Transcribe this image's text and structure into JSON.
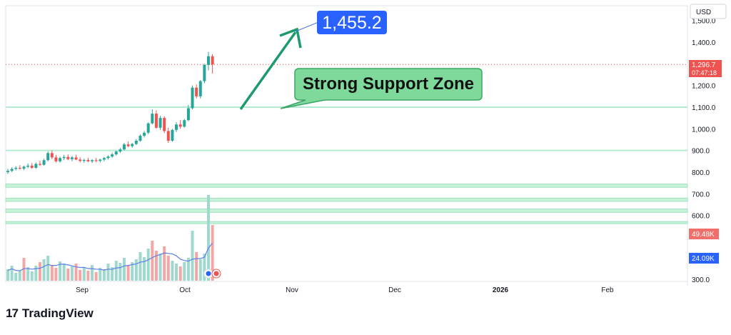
{
  "currency": "USD",
  "chart_data": {
    "type": "candlestick",
    "x_labels": [
      "Sep",
      "Oct",
      "Nov",
      "Dec",
      "2026",
      "Feb"
    ],
    "y_ticks": [
      "1,500.0",
      "1,400.0",
      "1,200.0",
      "1,100.0",
      "1,000.0",
      "900.0",
      "800.0",
      "700.0",
      "600.0",
      "300.0"
    ],
    "ylim": [
      300,
      1520
    ],
    "candles": [
      {
        "o": 800,
        "h": 815,
        "l": 792,
        "c": 806
      },
      {
        "o": 806,
        "h": 822,
        "l": 800,
        "c": 815
      },
      {
        "o": 815,
        "h": 828,
        "l": 808,
        "c": 820
      },
      {
        "o": 820,
        "h": 832,
        "l": 812,
        "c": 816
      },
      {
        "o": 816,
        "h": 830,
        "l": 810,
        "c": 825
      },
      {
        "o": 825,
        "h": 840,
        "l": 818,
        "c": 830
      },
      {
        "o": 830,
        "h": 842,
        "l": 815,
        "c": 820
      },
      {
        "o": 820,
        "h": 845,
        "l": 815,
        "c": 838
      },
      {
        "o": 838,
        "h": 852,
        "l": 828,
        "c": 834
      },
      {
        "o": 834,
        "h": 862,
        "l": 830,
        "c": 855
      },
      {
        "o": 855,
        "h": 895,
        "l": 850,
        "c": 888
      },
      {
        "o": 888,
        "h": 900,
        "l": 860,
        "c": 868
      },
      {
        "o": 868,
        "h": 880,
        "l": 845,
        "c": 850
      },
      {
        "o": 850,
        "h": 872,
        "l": 844,
        "c": 865
      },
      {
        "o": 865,
        "h": 880,
        "l": 855,
        "c": 870
      },
      {
        "o": 870,
        "h": 882,
        "l": 855,
        "c": 860
      },
      {
        "o": 860,
        "h": 875,
        "l": 850,
        "c": 868
      },
      {
        "o": 868,
        "h": 880,
        "l": 855,
        "c": 858
      },
      {
        "o": 858,
        "h": 868,
        "l": 845,
        "c": 852
      },
      {
        "o": 852,
        "h": 862,
        "l": 843,
        "c": 856
      },
      {
        "o": 856,
        "h": 866,
        "l": 846,
        "c": 850
      },
      {
        "o": 850,
        "h": 860,
        "l": 842,
        "c": 855
      },
      {
        "o": 855,
        "h": 865,
        "l": 846,
        "c": 852
      },
      {
        "o": 852,
        "h": 862,
        "l": 845,
        "c": 858
      },
      {
        "o": 858,
        "h": 870,
        "l": 850,
        "c": 865
      },
      {
        "o": 865,
        "h": 878,
        "l": 858,
        "c": 872
      },
      {
        "o": 872,
        "h": 890,
        "l": 866,
        "c": 882
      },
      {
        "o": 882,
        "h": 900,
        "l": 876,
        "c": 895
      },
      {
        "o": 895,
        "h": 912,
        "l": 888,
        "c": 905
      },
      {
        "o": 905,
        "h": 935,
        "l": 900,
        "c": 928
      },
      {
        "o": 928,
        "h": 942,
        "l": 915,
        "c": 920
      },
      {
        "o": 920,
        "h": 935,
        "l": 912,
        "c": 930
      },
      {
        "o": 930,
        "h": 952,
        "l": 925,
        "c": 945
      },
      {
        "o": 945,
        "h": 975,
        "l": 940,
        "c": 968
      },
      {
        "o": 968,
        "h": 990,
        "l": 960,
        "c": 982
      },
      {
        "o": 982,
        "h": 1030,
        "l": 975,
        "c": 1025
      },
      {
        "o": 1025,
        "h": 1090,
        "l": 1020,
        "c": 1070
      },
      {
        "o": 1070,
        "h": 1085,
        "l": 1000,
        "c": 1005
      },
      {
        "o": 1005,
        "h": 1060,
        "l": 995,
        "c": 1050
      },
      {
        "o": 1050,
        "h": 1058,
        "l": 980,
        "c": 990
      },
      {
        "o": 990,
        "h": 1005,
        "l": 935,
        "c": 945
      },
      {
        "o": 945,
        "h": 1000,
        "l": 940,
        "c": 995
      },
      {
        "o": 995,
        "h": 1030,
        "l": 985,
        "c": 1020
      },
      {
        "o": 1020,
        "h": 1040,
        "l": 1000,
        "c": 1010
      },
      {
        "o": 1010,
        "h": 1045,
        "l": 1005,
        "c": 1040
      },
      {
        "o": 1040,
        "h": 1110,
        "l": 1035,
        "c": 1095
      },
      {
        "o": 1095,
        "h": 1200,
        "l": 1090,
        "c": 1190
      },
      {
        "o": 1190,
        "h": 1205,
        "l": 1140,
        "c": 1150
      },
      {
        "o": 1150,
        "h": 1225,
        "l": 1140,
        "c": 1220
      },
      {
        "o": 1220,
        "h": 1300,
        "l": 1210,
        "c": 1295
      },
      {
        "o": 1295,
        "h": 1355,
        "l": 1270,
        "c": 1335
      },
      {
        "o": 1335,
        "h": 1345,
        "l": 1255,
        "c": 1296.7
      }
    ],
    "volume": [
      {
        "v": 16,
        "up": true
      },
      {
        "v": 21,
        "up": true
      },
      {
        "v": 11,
        "up": true
      },
      {
        "v": 14,
        "up": true
      },
      {
        "v": 32,
        "up": false
      },
      {
        "v": 19,
        "up": true
      },
      {
        "v": 13,
        "up": true
      },
      {
        "v": 21,
        "up": true
      },
      {
        "v": 26,
        "up": false
      },
      {
        "v": 30,
        "up": true
      },
      {
        "v": 35,
        "up": true
      },
      {
        "v": 22,
        "up": false
      },
      {
        "v": 18,
        "up": false
      },
      {
        "v": 27,
        "up": true
      },
      {
        "v": 23,
        "up": true
      },
      {
        "v": 17,
        "up": false
      },
      {
        "v": 20,
        "up": true
      },
      {
        "v": 24,
        "up": false
      },
      {
        "v": 15,
        "up": false
      },
      {
        "v": 19,
        "up": true
      },
      {
        "v": 14,
        "up": false
      },
      {
        "v": 22,
        "up": true
      },
      {
        "v": 12,
        "up": false
      },
      {
        "v": 18,
        "up": true
      },
      {
        "v": 16,
        "up": true
      },
      {
        "v": 24,
        "up": true
      },
      {
        "v": 19,
        "up": true
      },
      {
        "v": 28,
        "up": true
      },
      {
        "v": 25,
        "up": true
      },
      {
        "v": 32,
        "up": true
      },
      {
        "v": 22,
        "up": false
      },
      {
        "v": 26,
        "up": true
      },
      {
        "v": 30,
        "up": true
      },
      {
        "v": 40,
        "up": true
      },
      {
        "v": 33,
        "up": true
      },
      {
        "v": 45,
        "up": true
      },
      {
        "v": 56,
        "up": false
      },
      {
        "v": 42,
        "up": false
      },
      {
        "v": 38,
        "up": true
      },
      {
        "v": 48,
        "up": false
      },
      {
        "v": 35,
        "up": false
      },
      {
        "v": 28,
        "up": true
      },
      {
        "v": 24,
        "up": true
      },
      {
        "v": 20,
        "up": false
      },
      {
        "v": 26,
        "up": true
      },
      {
        "v": 32,
        "up": true
      },
      {
        "v": 70,
        "up": true
      },
      {
        "v": 40,
        "up": false
      },
      {
        "v": 30,
        "up": true
      },
      {
        "v": 38,
        "up": true
      },
      {
        "v": 120,
        "up": true
      },
      {
        "v": 78,
        "up": false
      }
    ],
    "volume_ma_label": "24.09K",
    "volume_last_label": "49.48K",
    "support_lines": [
      1100,
      900
    ],
    "zones": [
      [
        730,
        745
      ],
      [
        665,
        680
      ],
      [
        614,
        630
      ],
      [
        562,
        572
      ]
    ],
    "current_price": {
      "value": 1296.7,
      "label": "1,296.7",
      "countdown": "07:47:18"
    },
    "annotations": {
      "target": "1,455.2",
      "support_label": "Strong Support Zone"
    }
  },
  "brand": {
    "name": "TradingView",
    "logo_text": "17"
  },
  "colors": {
    "up": "#26a69a",
    "down": "#ef5350",
    "target_bg": "#2962ff",
    "support_bg": "#7ed99b",
    "support_border": "#3aa565",
    "arrow": "#1d9a6c",
    "line": "#b2ebcf",
    "zone": "#c8f2d9",
    "vol_ma": "#5b7fe8"
  }
}
